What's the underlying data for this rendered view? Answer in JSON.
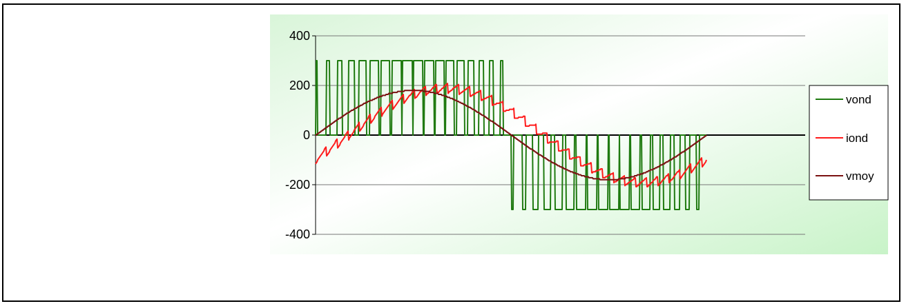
{
  "chart_data": {
    "type": "line",
    "x": {
      "samples": 567
    },
    "ylim": [
      -400,
      400
    ],
    "yticks": [
      400,
      200,
      0,
      -200,
      -400
    ],
    "ytick_labels": [
      "400",
      "200",
      "0",
      "-200",
      "-400"
    ],
    "grid": true,
    "legend_position": "right",
    "series": [
      {
        "name": "vond",
        "color": "#1f7a10",
        "kind": "pwm",
        "amplitude": 300,
        "pulse_count_per_half": 18,
        "period_samples": 567
      },
      {
        "name": "iond",
        "color": "#ff1a1a",
        "kind": "ripple-sine",
        "amplitude": 190,
        "phase_lag_deg": 30,
        "ripple": 20,
        "period_samples": 567
      },
      {
        "name": "vmoy",
        "color": "#7a1010",
        "kind": "stepped-sine",
        "amplitude": 180,
        "period_samples": 567
      }
    ]
  }
}
